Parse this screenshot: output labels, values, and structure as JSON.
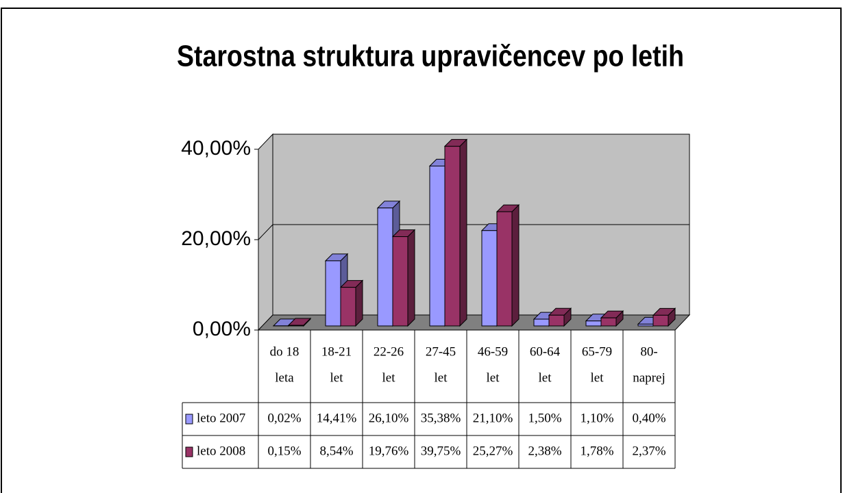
{
  "chart_data": {
    "type": "bar",
    "title": "Starostna struktura upravičencev po letih",
    "categories": [
      [
        "do 18",
        "leta"
      ],
      [
        "18-21",
        "let"
      ],
      [
        "22-26",
        "let"
      ],
      [
        "27-45",
        "let"
      ],
      [
        "46-59",
        "let"
      ],
      [
        "60-64",
        "let"
      ],
      [
        "65-79",
        "let"
      ],
      [
        "80-",
        "naprej"
      ]
    ],
    "series": [
      {
        "name": "leto 2007",
        "color": "#9999ff",
        "values": [
          0.02,
          14.41,
          26.1,
          35.38,
          21.1,
          1.5,
          1.1,
          0.4
        ],
        "value_labels": [
          "0,02%",
          "14,41%",
          "26,10%",
          "35,38%",
          "21,10%",
          "1,50%",
          "1,10%",
          "0,40%"
        ]
      },
      {
        "name": "leto 2008",
        "color": "#993366",
        "values": [
          0.15,
          8.54,
          19.76,
          39.75,
          25.27,
          2.38,
          1.78,
          2.37
        ],
        "value_labels": [
          "0,15%",
          "8,54%",
          "19,76%",
          "39,75%",
          "25,27%",
          "2,38%",
          "1,78%",
          "2,37%"
        ]
      }
    ],
    "ylim": [
      0,
      40
    ],
    "yticks": [
      {
        "value": 0,
        "label": "0,00%"
      },
      {
        "value": 20,
        "label": "20,00%"
      },
      {
        "value": 40,
        "label": "40,00%"
      }
    ],
    "grid": true
  }
}
